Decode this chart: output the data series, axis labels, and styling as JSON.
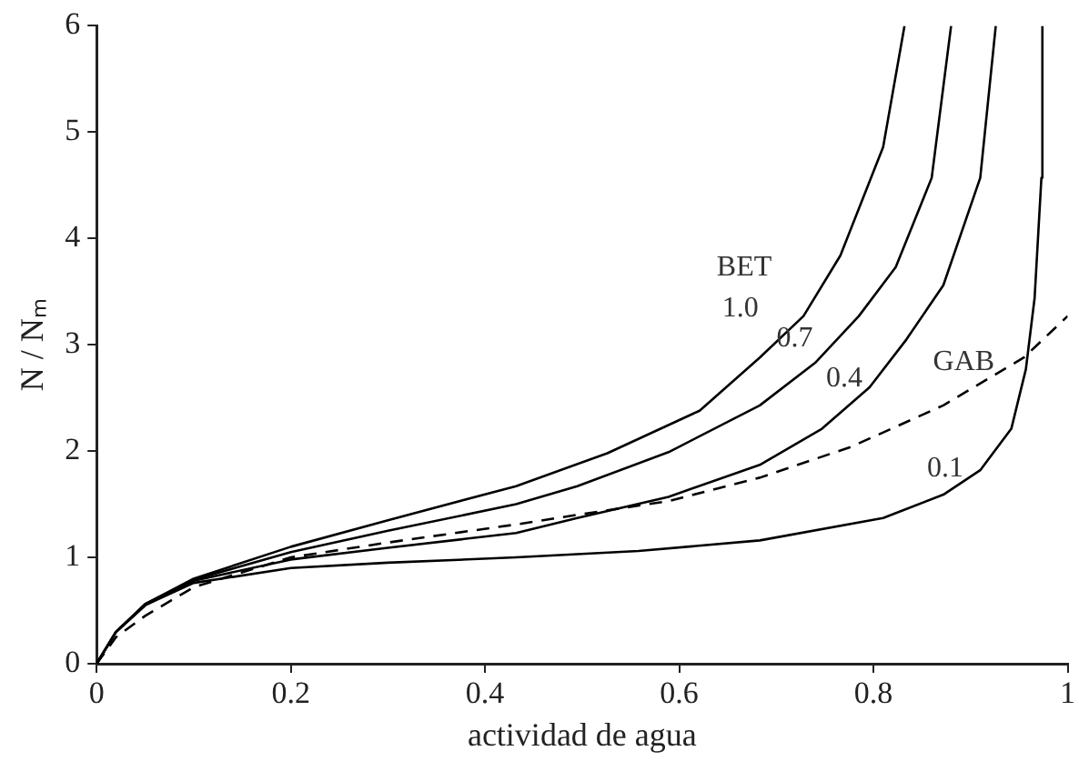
{
  "chart_data": {
    "type": "line",
    "xlabel": "actividad de agua",
    "ylabel": "N / Nₘ",
    "xlim": [
      0,
      1
    ],
    "ylim": [
      0,
      6
    ],
    "xticks": [
      0,
      0.2,
      0.4,
      0.6,
      0.8,
      1
    ],
    "yticks": [
      0,
      1,
      2,
      3,
      4,
      5,
      6
    ],
    "grid": false,
    "legend": false,
    "marker": "none",
    "annotations": [
      "BET"
    ],
    "series": [
      {
        "name": "1.0",
        "color": "#000000",
        "x": [
          0,
          0.02,
          0.05,
          0.1,
          0.2,
          0.3,
          0.432,
          0.526,
          0.621,
          0.683,
          0.728,
          0.766,
          0.81,
          0.832
        ],
        "values": [
          0,
          0.3,
          0.56,
          0.8,
          1.1,
          1.35,
          1.67,
          1.98,
          2.38,
          2.88,
          3.27,
          3.84,
          4.86,
          6
        ]
      },
      {
        "name": "0.7",
        "color": "#000000",
        "x": [
          0,
          0.02,
          0.05,
          0.1,
          0.2,
          0.3,
          0.432,
          0.495,
          0.589,
          0.683,
          0.74,
          0.785,
          0.823,
          0.86,
          0.88
        ],
        "values": [
          0,
          0.3,
          0.56,
          0.79,
          1.05,
          1.25,
          1.5,
          1.67,
          1.99,
          2.43,
          2.83,
          3.27,
          3.73,
          4.57,
          6
        ]
      },
      {
        "name": "0.4",
        "color": "#000000",
        "x": [
          0,
          0.02,
          0.05,
          0.1,
          0.2,
          0.3,
          0.432,
          0.495,
          0.589,
          0.683,
          0.747,
          0.796,
          0.834,
          0.872,
          0.91,
          0.926
        ],
        "values": [
          0,
          0.3,
          0.55,
          0.78,
          0.98,
          1.09,
          1.23,
          1.37,
          1.57,
          1.87,
          2.21,
          2.6,
          3.05,
          3.56,
          4.57,
          6
        ]
      },
      {
        "name": "0.1",
        "color": "#000000",
        "x": [
          0,
          0.02,
          0.05,
          0.1,
          0.2,
          0.3,
          0.432,
          0.558,
          0.683,
          0.81,
          0.872,
          0.91,
          0.942,
          0.957,
          0.966,
          0.973,
          0.974
        ],
        "values": [
          0,
          0.3,
          0.55,
          0.76,
          0.9,
          0.95,
          1.0,
          1.06,
          1.16,
          1.37,
          1.59,
          1.82,
          2.21,
          2.77,
          3.44,
          4.57,
          6
        ]
      },
      {
        "name": "GAB",
        "color": "#000000",
        "line_style": "dashed",
        "x": [
          0,
          0.02,
          0.05,
          0.1,
          0.2,
          0.3,
          0.432,
          0.495,
          0.589,
          0.683,
          0.777,
          0.872,
          0.955,
          1
        ],
        "values": [
          0,
          0.25,
          0.45,
          0.72,
          1.0,
          1.14,
          1.31,
          1.4,
          1.53,
          1.75,
          2.04,
          2.43,
          2.88,
          3.27
        ]
      }
    ]
  }
}
